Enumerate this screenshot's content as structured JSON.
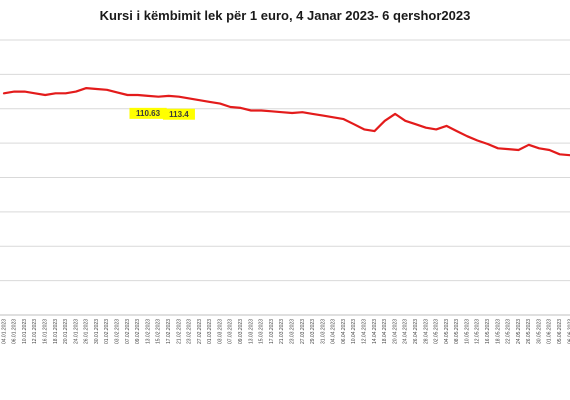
{
  "chart_data": {
    "type": "line",
    "title": "Kursi i këmbimit lek për 1 euro, 4 Janar 2023- 6 qershor2023",
    "xlabel": "",
    "ylabel": "",
    "ylim": [
      104,
      120
    ],
    "grid": true,
    "legend": "none",
    "x": [
      "04.01.2023",
      "06.01.2023",
      "10.01.2023",
      "12.01.2023",
      "16.01.2023",
      "18.01.2023",
      "20.01.2023",
      "24.01.2023",
      "26.01.2023",
      "30.01.2023",
      "01.02.2023",
      "03.02.2023",
      "07.02.2023",
      "09.02.2023",
      "13.02.2023",
      "15.02.2023",
      "17.02.2023",
      "21.02.2023",
      "23.02.2023",
      "27.02.2023",
      "01.03.2023",
      "03.03.2023",
      "07.03.2023",
      "09.03.2023",
      "13.03.2023",
      "15.03.2023",
      "17.03.2023",
      "21.03.2023",
      "23.03.2023",
      "27.03.2023",
      "29.03.2023",
      "31.03.2023",
      "04.04.2023",
      "06.04.2023",
      "10.04.2023",
      "12.04.2023",
      "14.04.2023",
      "18.04.2023",
      "20.04.2023",
      "24.04.2023",
      "26.04.2023",
      "28.04.2023",
      "02.05.2023",
      "04.05.2023",
      "08.05.2023",
      "10.05.2023",
      "12.05.2023",
      "16.05.2023",
      "18.05.2023",
      "22.05.2023",
      "24.05.2023",
      "26.05.2023",
      "30.05.2023",
      "01.06.2023",
      "05.06.2023",
      "06.06.2023"
    ],
    "tick_labels": [
      "04.01.2023",
      "06.01.2023",
      "10.01.2023",
      "12.01.2023",
      "16.01.2023",
      "18.01.2023",
      "20.01.2023",
      "24.01.2023",
      "26.01.2023",
      "30.01.2023",
      "01.02.2023",
      "03.02.2023",
      "07.02.2023",
      "09.02.2023",
      "13.02.2023",
      "15.02.2023",
      "17.02.2023",
      "21.02.2023",
      "23.02.2023",
      "27.02.2023",
      "01.03.2023",
      "03.03.2023",
      "07.03.2023",
      "09.03.2023",
      "13.03.2023",
      "15.03.2023",
      "17.03.2023",
      "21.03.2023",
      "23.03.2023",
      "27.03.2023",
      "29.03.2023",
      "31.03.2023",
      "04.04.2023",
      "06.04.2023",
      "10.04.2023",
      "12.04.2023",
      "14.04.2023",
      "18.04.2023",
      "20.04.2023",
      "24.04.2023",
      "26.04.2023",
      "28.04.2023",
      "02.05.2023",
      "04.05.2023",
      "08.05.2023",
      "10.05.2023",
      "12.05.2023",
      "16.05.2023",
      "18.05.2023",
      "22.05.2023",
      "24.05.2023",
      "26.05.2023",
      "30.05.2023",
      "01.06.2023",
      "05.06.2023",
      "06.06.2023"
    ],
    "series": [
      {
        "name": "",
        "color": "#e31b1b",
        "values": [
          116.9,
          117.0,
          117.0,
          116.9,
          116.8,
          116.9,
          116.9,
          117.0,
          117.2,
          117.15,
          117.1,
          116.95,
          116.8,
          116.8,
          116.75,
          116.7,
          116.75,
          116.7,
          116.6,
          116.5,
          116.4,
          116.3,
          116.1,
          116.05,
          115.9,
          115.9,
          115.85,
          115.8,
          115.75,
          115.8,
          115.7,
          115.6,
          115.5,
          115.4,
          115.1,
          114.8,
          114.7,
          115.3,
          115.7,
          115.3,
          115.1,
          114.9,
          114.8,
          115.0,
          114.7,
          114.4,
          114.15,
          113.95,
          113.7,
          113.65,
          113.6,
          113.9,
          113.7,
          113.6,
          113.35,
          113.3
        ]
      }
    ],
    "annotations": [
      {
        "text": "110.63",
        "index": 14
      },
      {
        "text": "113.4",
        "index": 17
      }
    ]
  }
}
